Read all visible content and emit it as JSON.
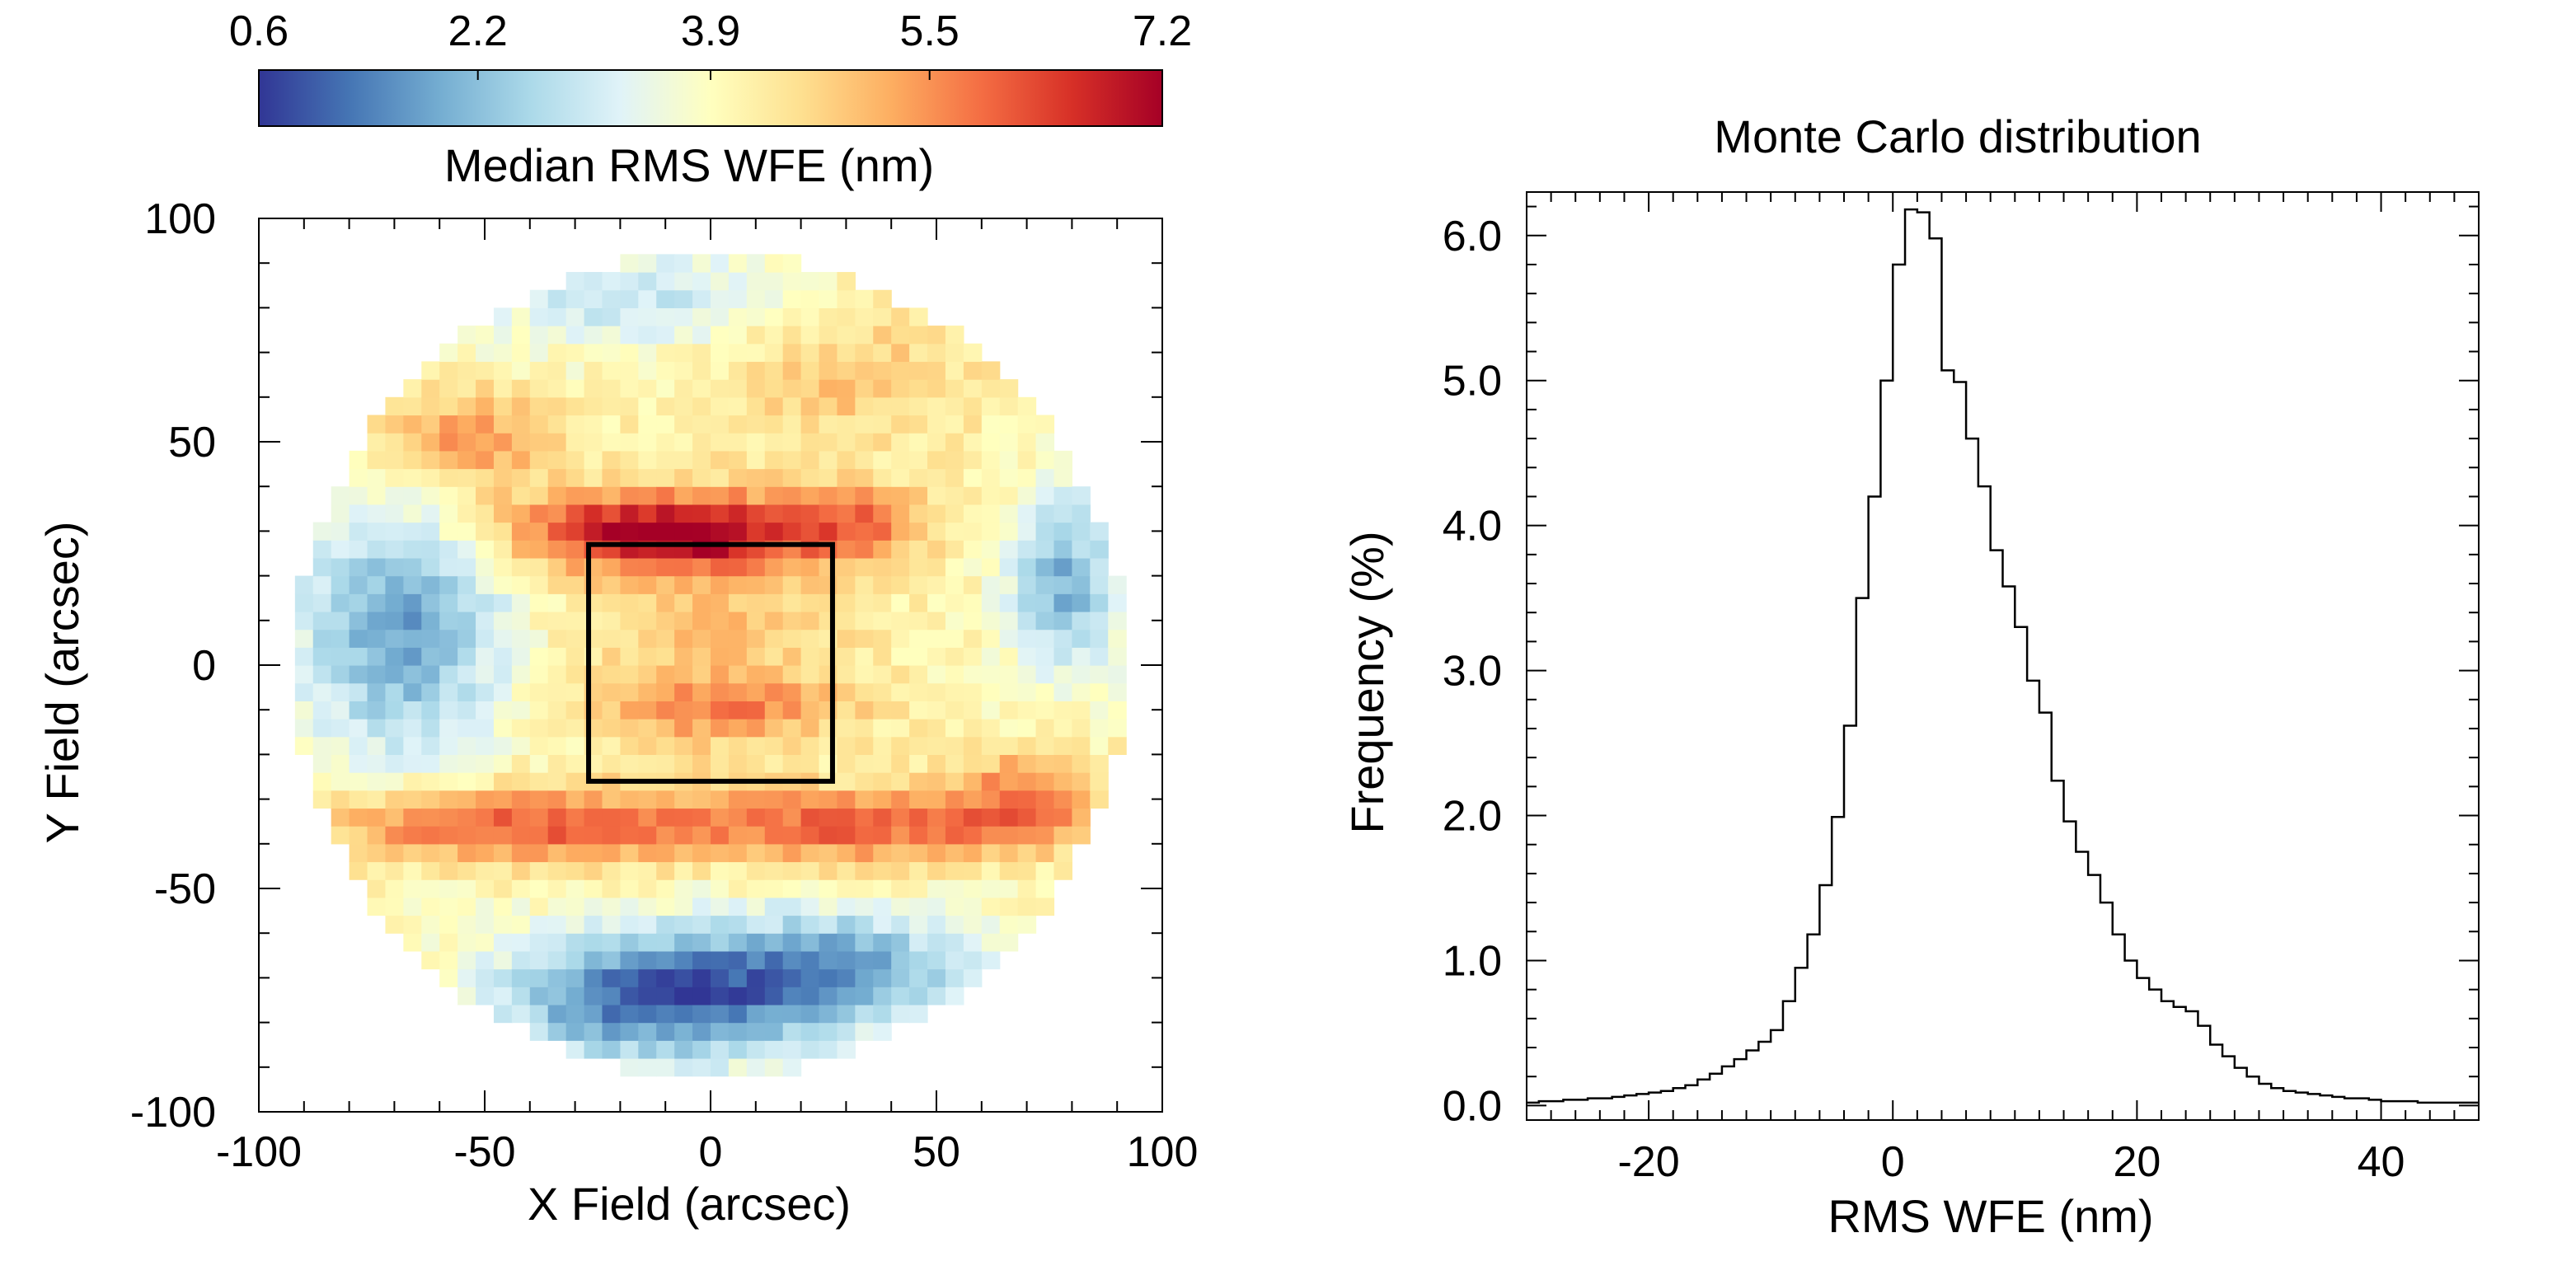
{
  "colors": {
    "colormap": [
      "#313695",
      "#4575b4",
      "#74add1",
      "#abd9e9",
      "#e0f3f8",
      "#ffffbf",
      "#fee090",
      "#fdae61",
      "#f46d43",
      "#d73027",
      "#a50026"
    ],
    "axis": "#000000",
    "background": "#ffffff"
  },
  "chart_data": [
    {
      "type": "heatmap",
      "title": "",
      "xlabel": "X Field (arcsec)",
      "ylabel": "Y Field (arcsec)",
      "xlim": [
        -100,
        100
      ],
      "ylim": [
        -100,
        100
      ],
      "x_ticks": [
        -100,
        -50,
        0,
        50,
        100
      ],
      "y_ticks": [
        -100,
        -50,
        0,
        50,
        100
      ],
      "x_tick_labels": [
        "-100",
        "-50",
        "0",
        "50",
        "100"
      ],
      "y_tick_labels": [
        "-100",
        "-50",
        "0",
        "50",
        "100"
      ],
      "field_radius_arcsec": 92,
      "grid_cell_arcsec": 4,
      "colorbar": {
        "label": "Median RMS WFE (nm)",
        "range": [
          0.6,
          7.2
        ],
        "tick_values": [
          0.6,
          2.2,
          3.9,
          5.5,
          7.2
        ],
        "tick_labels": [
          "0.6",
          "2.2",
          "3.9",
          "5.5",
          "7.2"
        ]
      },
      "highlight_box": {
        "x_range": [
          -27,
          27
        ],
        "y_range": [
          -26,
          27
        ]
      },
      "features": [
        {
          "x": -10,
          "y": 30,
          "sx": 25,
          "sy": 6,
          "amp": 3.1
        },
        {
          "x": 35,
          "y": 32,
          "sx": 10,
          "sy": 6,
          "amp": 1.3
        },
        {
          "x": -55,
          "y": 50,
          "sx": 15,
          "sy": 8,
          "amp": 1.6
        },
        {
          "x": 30,
          "y": 65,
          "sx": 22,
          "sy": 12,
          "amp": 0.9
        },
        {
          "x": 0,
          "y": 8,
          "sx": 24,
          "sy": 20,
          "amp": 0.9
        },
        {
          "x": 5,
          "y": -10,
          "sx": 20,
          "sy": 5,
          "amp": 1.1
        },
        {
          "x": -45,
          "y": -36,
          "sx": 30,
          "sy": 6,
          "amp": 2.1
        },
        {
          "x": 35,
          "y": -36,
          "sx": 30,
          "sy": 6,
          "amp": 1.9
        },
        {
          "x": 70,
          "y": -28,
          "sx": 12,
          "sy": 7,
          "amp": 1.4
        },
        {
          "x": -68,
          "y": 8,
          "sx": 16,
          "sy": 20,
          "amp": -2.2
        },
        {
          "x": 78,
          "y": 18,
          "sx": 8,
          "sy": 14,
          "amp": -2.0
        },
        {
          "x": -12,
          "y": -74,
          "sx": 24,
          "sy": 10,
          "amp": -3.0
        },
        {
          "x": 30,
          "y": -68,
          "sx": 20,
          "sy": 9,
          "amp": -2.0
        },
        {
          "x": -15,
          "y": 82,
          "sx": 25,
          "sy": 8,
          "amp": -1.1
        }
      ]
    },
    {
      "type": "line",
      "style": "histogram-step",
      "title": "Monte Carlo distribution",
      "xlabel": "RMS WFE (nm)",
      "ylabel": "Frequency (%)",
      "xlim": [
        -30,
        48
      ],
      "ylim": [
        -0.1,
        6.3
      ],
      "x_ticks": [
        -20,
        0,
        20,
        40
      ],
      "x_tick_labels": [
        "-20",
        "0",
        "20",
        "40"
      ],
      "y_ticks": [
        0,
        1,
        2,
        3,
        4,
        5,
        6
      ],
      "y_tick_labels": [
        "0.0",
        "1.0",
        "2.0",
        "3.0",
        "4.0",
        "5.0",
        "6.0"
      ],
      "bin_width": 1,
      "bin_start": -30,
      "values": [
        0.02,
        0.03,
        0.03,
        0.04,
        0.04,
        0.05,
        0.05,
        0.06,
        0.07,
        0.08,
        0.09,
        0.1,
        0.12,
        0.14,
        0.18,
        0.22,
        0.27,
        0.32,
        0.38,
        0.44,
        0.52,
        0.72,
        0.95,
        1.18,
        1.52,
        1.99,
        2.62,
        3.5,
        4.2,
        5.0,
        5.8,
        6.18,
        6.16,
        5.98,
        5.07,
        4.99,
        4.6,
        4.27,
        3.83,
        3.58,
        3.3,
        2.93,
        2.71,
        2.24,
        1.96,
        1.75,
        1.59,
        1.4,
        1.18,
        1.0,
        0.88,
        0.8,
        0.72,
        0.68,
        0.65,
        0.55,
        0.42,
        0.34,
        0.26,
        0.2,
        0.15,
        0.12,
        0.1,
        0.09,
        0.08,
        0.07,
        0.06,
        0.05,
        0.05,
        0.04,
        0.03,
        0.03,
        0.03,
        0.02,
        0.02,
        0.02,
        0.02,
        0.02
      ]
    }
  ]
}
